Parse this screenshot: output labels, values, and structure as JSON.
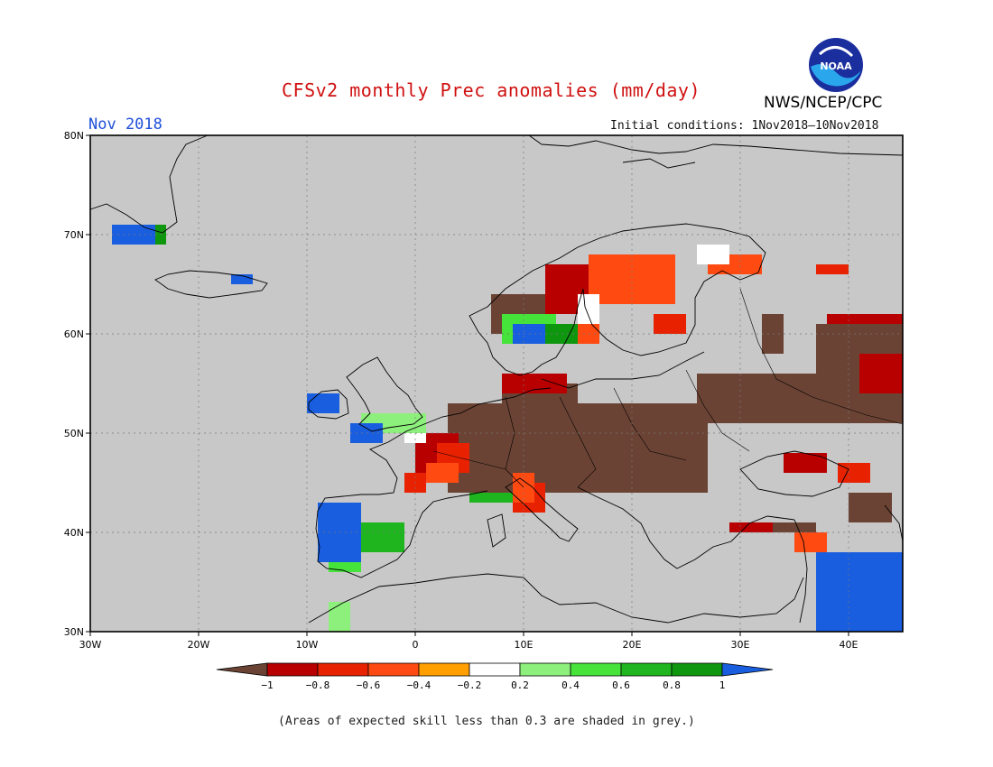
{
  "header": {
    "title": "CFSv2 monthly Prec anomalies (mm/day)",
    "agency": "NWS/NCEP/CPC",
    "logo_text": "NOAA",
    "month": "Nov 2018",
    "initial_conditions": "Initial conditions: 1Nov2018–10Nov2018"
  },
  "map": {
    "lon_range": [
      -30,
      45
    ],
    "lat_range": [
      30,
      80
    ],
    "lon_ticks": [
      {
        "value": -30,
        "label": "30W"
      },
      {
        "value": -20,
        "label": "20W"
      },
      {
        "value": -10,
        "label": "10W"
      },
      {
        "value": 0,
        "label": "0"
      },
      {
        "value": 10,
        "label": "10E"
      },
      {
        "value": 20,
        "label": "20E"
      },
      {
        "value": 30,
        "label": "30E"
      },
      {
        "value": 40,
        "label": "40E"
      }
    ],
    "lat_ticks": [
      {
        "value": 30,
        "label": "30N"
      },
      {
        "value": 40,
        "label": "40N"
      },
      {
        "value": 50,
        "label": "50N"
      },
      {
        "value": 60,
        "label": "60N"
      },
      {
        "value": 70,
        "label": "70N"
      },
      {
        "value": 80,
        "label": "80N"
      }
    ],
    "background_color": "#c8c8c8",
    "anomaly_regions": [
      {
        "level": "dry1",
        "lon": [
          3,
          27
        ],
        "lat": [
          44,
          53
        ]
      },
      {
        "level": "dry1",
        "lon": [
          26,
          45
        ],
        "lat": [
          51,
          56
        ]
      },
      {
        "level": "dry1",
        "lon": [
          37,
          45
        ],
        "lat": [
          56,
          61
        ]
      },
      {
        "level": "dry1",
        "lon": [
          8,
          15
        ],
        "lat": [
          53,
          55
        ]
      },
      {
        "level": "dry1",
        "lon": [
          7,
          12
        ],
        "lat": [
          60,
          64
        ]
      },
      {
        "level": "dry1",
        "lon": [
          32,
          34
        ],
        "lat": [
          58,
          62
        ]
      },
      {
        "level": "dry1",
        "lon": [
          32,
          37
        ],
        "lat": [
          40,
          41
        ]
      },
      {
        "level": "dry1",
        "lon": [
          40,
          44
        ],
        "lat": [
          41,
          44
        ]
      },
      {
        "level": "dry08",
        "lon": [
          0,
          4
        ],
        "lat": [
          45,
          50
        ]
      },
      {
        "level": "dry08",
        "lon": [
          38,
          45
        ],
        "lat": [
          61,
          62
        ]
      },
      {
        "level": "dry08",
        "lon": [
          41,
          45
        ],
        "lat": [
          54,
          58
        ]
      },
      {
        "level": "dry08",
        "lon": [
          8,
          14
        ],
        "lat": [
          54,
          56
        ]
      },
      {
        "level": "dry08",
        "lon": [
          12,
          16
        ],
        "lat": [
          62,
          67
        ]
      },
      {
        "level": "dry08",
        "lon": [
          29,
          33
        ],
        "lat": [
          40,
          41
        ]
      },
      {
        "level": "dry08",
        "lon": [
          34,
          38
        ],
        "lat": [
          46,
          48
        ]
      },
      {
        "level": "dry06",
        "lon": [
          2,
          5
        ],
        "lat": [
          46,
          49
        ]
      },
      {
        "level": "dry06",
        "lon": [
          22,
          25
        ],
        "lat": [
          60,
          62
        ]
      },
      {
        "level": "dry06",
        "lon": [
          37,
          40
        ],
        "lat": [
          66,
          67
        ]
      },
      {
        "level": "dry06",
        "lon": [
          -1,
          1
        ],
        "lat": [
          44,
          46
        ]
      },
      {
        "level": "dry06",
        "lon": [
          9,
          12
        ],
        "lat": [
          42,
          45
        ]
      },
      {
        "level": "dry06",
        "lon": [
          39,
          42
        ],
        "lat": [
          45,
          47
        ]
      },
      {
        "level": "dry04",
        "lon": [
          16,
          24
        ],
        "lat": [
          63,
          68
        ]
      },
      {
        "level": "dry04",
        "lon": [
          27,
          32
        ],
        "lat": [
          66,
          68
        ]
      },
      {
        "level": "dry04",
        "lon": [
          1,
          4
        ],
        "lat": [
          45,
          47
        ]
      },
      {
        "level": "dry04",
        "lon": [
          9,
          11
        ],
        "lat": [
          43,
          46
        ]
      },
      {
        "level": "dry04",
        "lon": [
          35,
          38
        ],
        "lat": [
          38,
          40
        ]
      },
      {
        "level": "dry04",
        "lon": [
          15,
          17
        ],
        "lat": [
          59,
          61
        ]
      },
      {
        "level": "neutral",
        "lon": [
          15,
          17
        ],
        "lat": [
          61,
          64
        ]
      },
      {
        "level": "neutral",
        "lon": [
          26,
          29
        ],
        "lat": [
          67,
          69
        ]
      },
      {
        "level": "neutral",
        "lon": [
          -1,
          1
        ],
        "lat": [
          49,
          50
        ]
      },
      {
        "level": "wet02",
        "lon": [
          -5,
          1
        ],
        "lat": [
          50,
          52
        ]
      },
      {
        "level": "wet02",
        "lon": [
          -8,
          -6
        ],
        "lat": [
          30,
          33
        ]
      },
      {
        "level": "wet02",
        "lon": [
          37,
          40
        ],
        "lat": [
          30,
          34
        ]
      },
      {
        "level": "wet04",
        "lon": [
          -8,
          -5
        ],
        "lat": [
          36,
          40
        ]
      },
      {
        "level": "wet04",
        "lon": [
          8,
          13
        ],
        "lat": [
          59,
          62
        ]
      },
      {
        "level": "wet06",
        "lon": [
          -5,
          -1
        ],
        "lat": [
          38,
          41
        ]
      },
      {
        "level": "wet06",
        "lon": [
          5,
          9
        ],
        "lat": [
          43,
          44
        ]
      },
      {
        "level": "wet08",
        "lon": [
          -9,
          -5
        ],
        "lat": [
          38,
          41
        ]
      },
      {
        "level": "wet08",
        "lon": [
          -27,
          -23
        ],
        "lat": [
          69,
          71
        ]
      },
      {
        "level": "wet08",
        "lon": [
          12,
          15
        ],
        "lat": [
          59,
          61
        ]
      },
      {
        "level": "wet1",
        "lon": [
          -9,
          -5
        ],
        "lat": [
          37,
          43
        ]
      },
      {
        "level": "wet1",
        "lon": [
          -28,
          -24
        ],
        "lat": [
          69,
          71
        ]
      },
      {
        "level": "wet1",
        "lon": [
          -6,
          -3
        ],
        "lat": [
          49,
          51
        ]
      },
      {
        "level": "wet1",
        "lon": [
          -10,
          -7
        ],
        "lat": [
          52,
          54
        ]
      },
      {
        "level": "wet1",
        "lon": [
          -17,
          -15
        ],
        "lat": [
          65,
          66
        ]
      },
      {
        "level": "wet1",
        "lon": [
          37,
          45
        ],
        "lat": [
          30,
          38
        ]
      },
      {
        "level": "wet1",
        "lon": [
          9,
          12
        ],
        "lat": [
          59,
          61
        ]
      }
    ]
  },
  "colorbar": {
    "levels": [
      {
        "id": "dry1",
        "color": "#6b4334"
      },
      {
        "id": "dry08",
        "color": "#b80000"
      },
      {
        "id": "dry06",
        "color": "#e82200"
      },
      {
        "id": "dry04",
        "color": "#ff4a12"
      },
      {
        "id": "dry02",
        "color": "#ff9f00"
      },
      {
        "id": "neutral",
        "color": "#ffffff"
      },
      {
        "id": "wet02",
        "color": "#8ef07c"
      },
      {
        "id": "wet04",
        "color": "#46e33b"
      },
      {
        "id": "wet06",
        "color": "#1eb51e"
      },
      {
        "id": "wet08",
        "color": "#0f960f"
      },
      {
        "id": "wet1",
        "color": "#1a5ee0"
      }
    ],
    "tick_labels": [
      "−1",
      "−0.8",
      "−0.6",
      "−0.4",
      "−0.2",
      "0.2",
      "0.4",
      "0.6",
      "0.8",
      "1"
    ]
  },
  "footer": {
    "note": "(Areas of expected skill less than 0.3 are shaded in grey.)"
  }
}
